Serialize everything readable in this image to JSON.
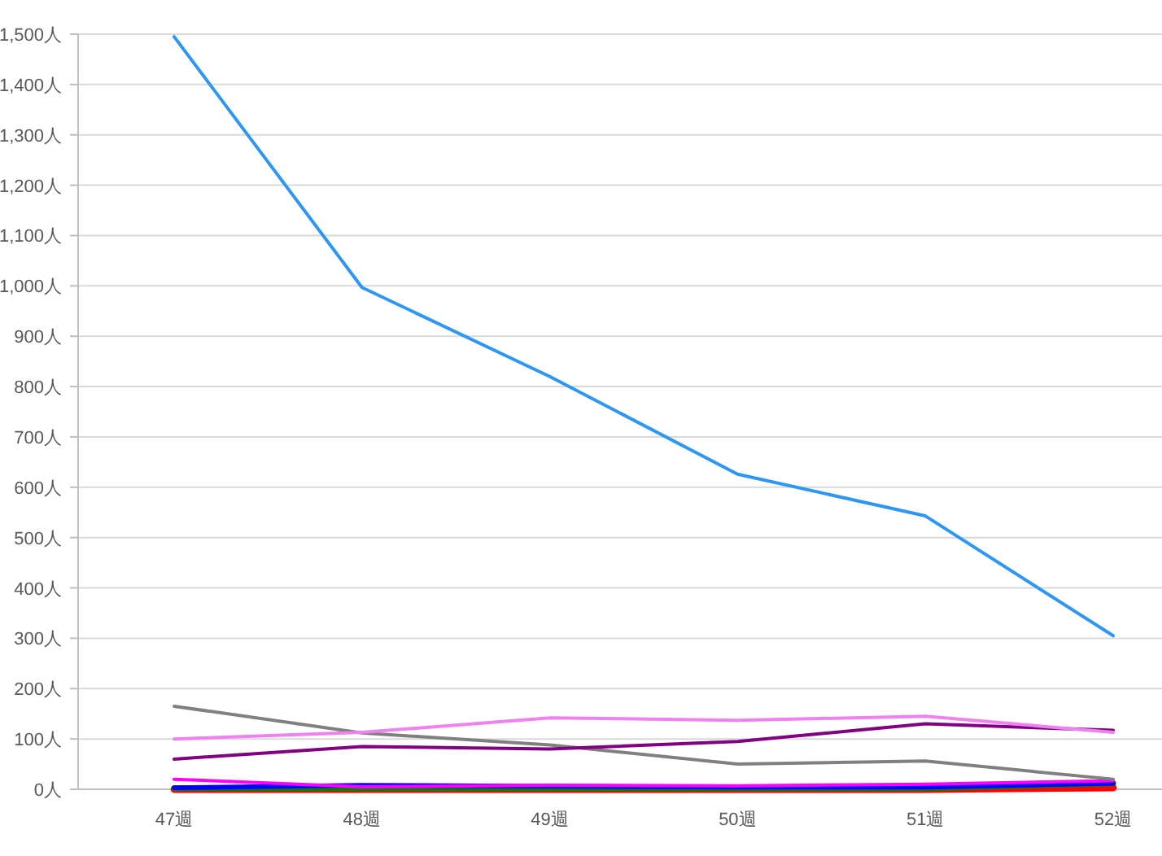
{
  "chart_data": {
    "type": "line",
    "categories": [
      "47週",
      "48週",
      "49週",
      "50週",
      "51週",
      "52週"
    ],
    "ylim": [
      0,
      1500
    ],
    "yticks": [
      {
        "value": 0,
        "label": "0人"
      },
      {
        "value": 100,
        "label": "100人"
      },
      {
        "value": 200,
        "label": "200人"
      },
      {
        "value": 300,
        "label": "300人"
      },
      {
        "value": 400,
        "label": "400人"
      },
      {
        "value": 500,
        "label": "500人"
      },
      {
        "value": 600,
        "label": "600人"
      },
      {
        "value": 700,
        "label": "700人"
      },
      {
        "value": 800,
        "label": "800人"
      },
      {
        "value": 900,
        "label": "900人"
      },
      {
        "value": 1000,
        "label": "1,000人"
      },
      {
        "value": 1100,
        "label": "1,100人"
      },
      {
        "value": 1200,
        "label": "1,200人"
      },
      {
        "value": 1300,
        "label": "1,300人"
      },
      {
        "value": 1400,
        "label": "1,400人"
      },
      {
        "value": 1500,
        "label": "1,500人"
      }
    ],
    "grid": "y",
    "marker": "none",
    "line_style": "solid",
    "series": [
      {
        "color": "#ff0000",
        "values": [
          0,
          0,
          0,
          0,
          0,
          3
        ]
      },
      {
        "color": "#008000",
        "values": [
          2,
          2,
          2,
          2,
          2,
          12
        ]
      },
      {
        "color": "#0000ff",
        "values": [
          3,
          8,
          6,
          4,
          4,
          12
        ]
      },
      {
        "color": "#ff00ff",
        "values": [
          20,
          5,
          8,
          7,
          10,
          17
        ]
      },
      {
        "color": "#808080",
        "values": [
          165,
          112,
          88,
          50,
          56,
          20
        ]
      },
      {
        "color": "#800080",
        "values": [
          60,
          85,
          80,
          95,
          130,
          117
        ]
      },
      {
        "color": "#ee82ee",
        "values": [
          100,
          113,
          142,
          137,
          145,
          113
        ]
      },
      {
        "color": "#2e96f5",
        "values": [
          1495,
          997,
          820,
          626,
          543,
          305
        ]
      }
    ]
  }
}
